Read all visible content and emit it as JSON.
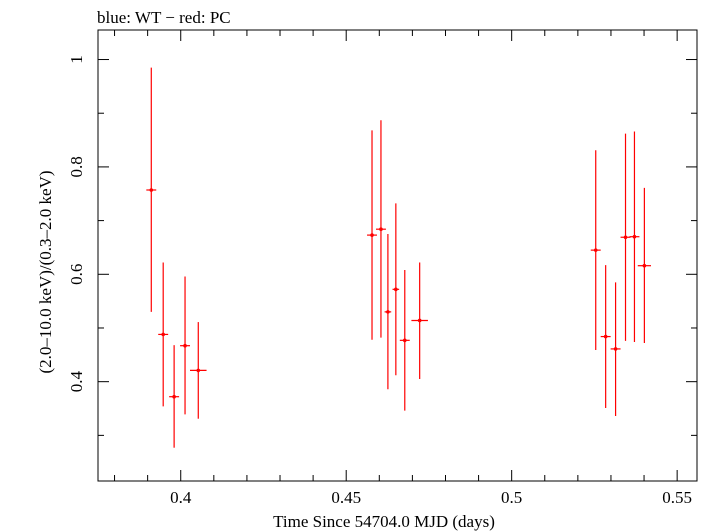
{
  "chart_data": {
    "type": "scatter",
    "title": "blue: WT − red: PC",
    "xlabel": "Time Since 54704.0 MJD (days)",
    "ylabel": "(2.0–10.0 keV)/(0.3–2.0 keV)",
    "xlim": [
      0.375,
      0.556
    ],
    "ylim": [
      0.215,
      1.055
    ],
    "xticks": [
      {
        "value": 0.4,
        "label": "0.4"
      },
      {
        "value": 0.45,
        "label": "0.45"
      },
      {
        "value": 0.5,
        "label": "0.5"
      },
      {
        "value": 0.55,
        "label": "0.55"
      }
    ],
    "yticks": [
      {
        "value": 0.4,
        "label": "0.4"
      },
      {
        "value": 0.6,
        "label": "0.6"
      },
      {
        "value": 0.8,
        "label": "0.8"
      },
      {
        "value": 1.0,
        "label": "1"
      }
    ],
    "xminor": [
      0.38,
      0.39,
      0.41,
      0.42,
      0.43,
      0.44,
      0.46,
      0.47,
      0.48,
      0.49,
      0.51,
      0.52,
      0.53,
      0.54
    ],
    "yminor": [
      0.3,
      0.5,
      0.7,
      0.9
    ],
    "series": [
      {
        "color": "#ff0000",
        "points": [
          {
            "x": 0.3911,
            "y": 0.757,
            "xerr": 0.0015,
            "ylo": 0.53,
            "yhi": 0.985
          },
          {
            "x": 0.3947,
            "y": 0.488,
            "xerr": 0.0015,
            "ylo": 0.354,
            "yhi": 0.622
          },
          {
            "x": 0.398,
            "y": 0.372,
            "xerr": 0.0015,
            "ylo": 0.277,
            "yhi": 0.468
          },
          {
            "x": 0.4013,
            "y": 0.467,
            "xerr": 0.0015,
            "ylo": 0.339,
            "yhi": 0.596
          },
          {
            "x": 0.4053,
            "y": 0.421,
            "xerr": 0.0025,
            "ylo": 0.331,
            "yhi": 0.511
          },
          {
            "x": 0.4578,
            "y": 0.673,
            "xerr": 0.0015,
            "ylo": 0.478,
            "yhi": 0.868
          },
          {
            "x": 0.4605,
            "y": 0.684,
            "xerr": 0.0015,
            "ylo": 0.482,
            "yhi": 0.887
          },
          {
            "x": 0.4626,
            "y": 0.53,
            "xerr": 0.001,
            "ylo": 0.386,
            "yhi": 0.675
          },
          {
            "x": 0.465,
            "y": 0.572,
            "xerr": 0.001,
            "ylo": 0.412,
            "yhi": 0.732
          },
          {
            "x": 0.4677,
            "y": 0.477,
            "xerr": 0.0015,
            "ylo": 0.346,
            "yhi": 0.608
          },
          {
            "x": 0.4722,
            "y": 0.514,
            "xerr": 0.0025,
            "ylo": 0.405,
            "yhi": 0.622
          },
          {
            "x": 0.5254,
            "y": 0.645,
            "xerr": 0.0015,
            "ylo": 0.459,
            "yhi": 0.831
          },
          {
            "x": 0.5284,
            "y": 0.484,
            "xerr": 0.0015,
            "ylo": 0.351,
            "yhi": 0.617
          },
          {
            "x": 0.5314,
            "y": 0.461,
            "xerr": 0.0015,
            "ylo": 0.336,
            "yhi": 0.585
          },
          {
            "x": 0.5344,
            "y": 0.669,
            "xerr": 0.0015,
            "ylo": 0.476,
            "yhi": 0.862
          },
          {
            "x": 0.5371,
            "y": 0.67,
            "xerr": 0.0015,
            "ylo": 0.474,
            "yhi": 0.866
          },
          {
            "x": 0.5401,
            "y": 0.616,
            "xerr": 0.002,
            "ylo": 0.472,
            "yhi": 0.761
          }
        ]
      }
    ]
  }
}
